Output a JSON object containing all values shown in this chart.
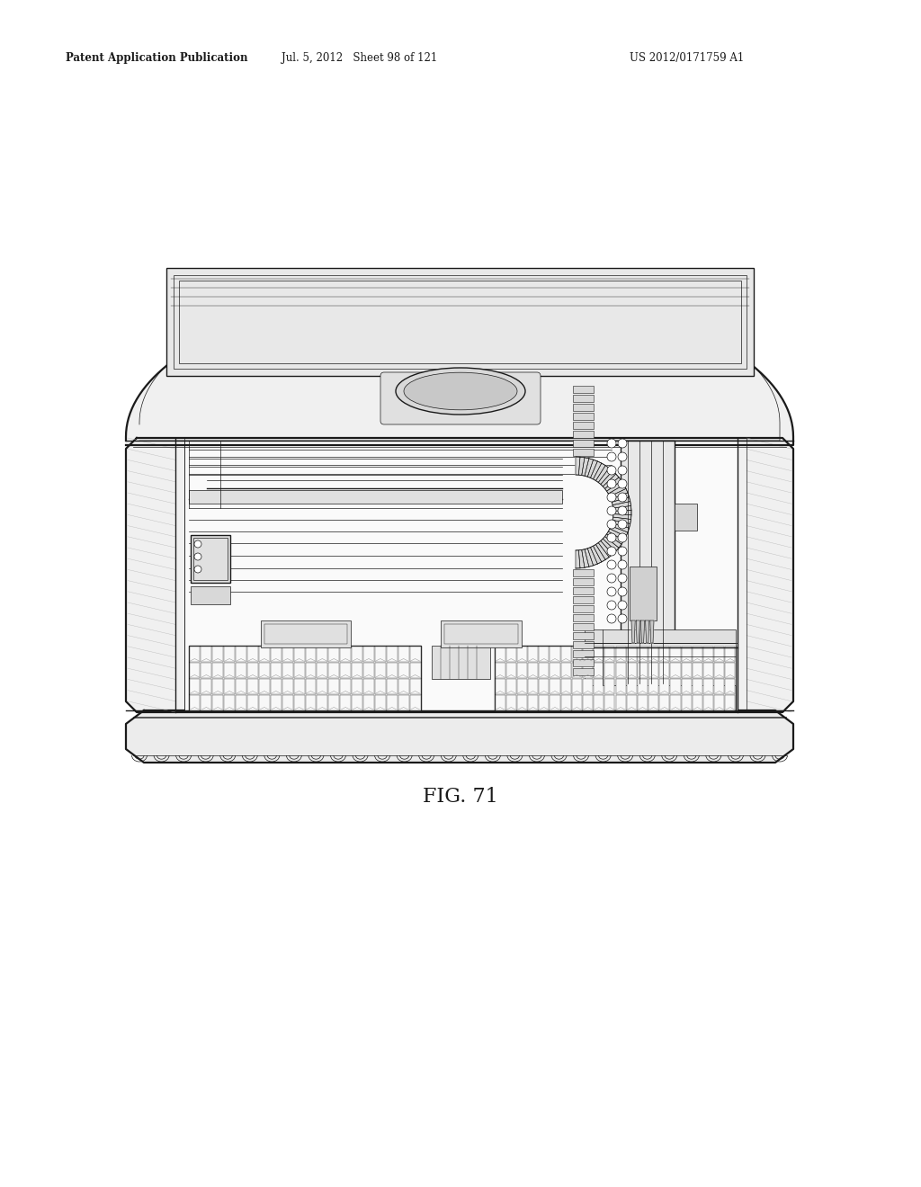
{
  "title": "FIG. 71",
  "header_left": "Patent Application Publication",
  "header_middle": "Jul. 5, 2012   Sheet 98 of 121",
  "header_right": "US 2012/0171759 A1",
  "bg_color": "#ffffff",
  "lc": "#1a1a1a",
  "gray1": "#f5f5f5",
  "gray2": "#e8e8e8",
  "gray3": "#d0d0d0",
  "gray4": "#aaaaaa",
  "gray5": "#888888",
  "hatch_gray": "#bbbbbb",
  "lw_thin": 0.5,
  "lw_med": 1.0,
  "lw_thick": 1.6,
  "lw_heavy": 2.2
}
